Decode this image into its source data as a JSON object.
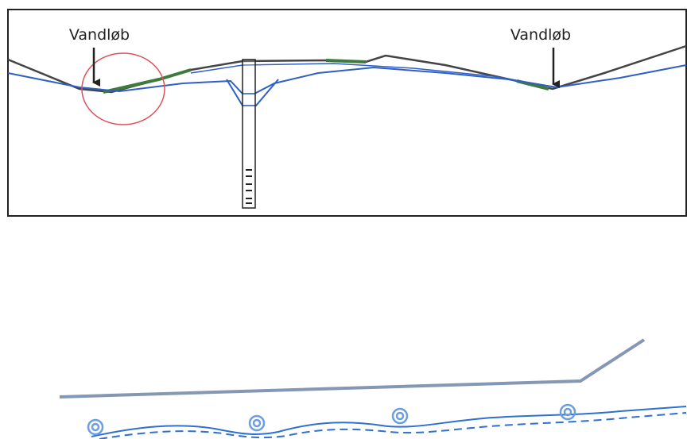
{
  "annotations": [
    {
      "label": "Vandløb"
    },
    {
      "label": "Vandløb"
    }
  ]
}
